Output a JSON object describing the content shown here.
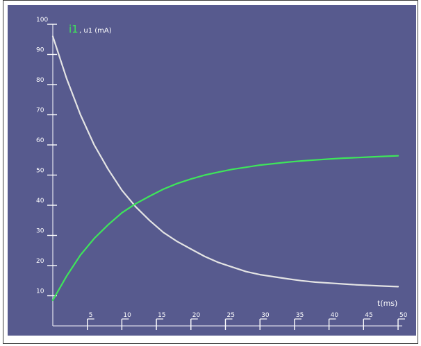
{
  "chart_data": {
    "type": "line",
    "title": "",
    "xlabel": "t(ms)",
    "ylabel": "",
    "xlim": [
      0,
      50
    ],
    "ylim": [
      0,
      100
    ],
    "x_ticks": [
      5,
      10,
      15,
      20,
      25,
      30,
      35,
      40,
      45,
      50
    ],
    "y_ticks": [
      10,
      20,
      30,
      40,
      50,
      60,
      70,
      80,
      90,
      100
    ],
    "grid": false,
    "legend": {
      "position": "top-left",
      "label_highlight": "i1",
      "label_rest": ", u1 (mA)"
    },
    "series": [
      {
        "name": "u1",
        "color": "#e4e4e4",
        "x": [
          0,
          2,
          4,
          6,
          8,
          10,
          12,
          14,
          16,
          18,
          20,
          22,
          24,
          26,
          28,
          30,
          32,
          34,
          36,
          38,
          40,
          42,
          44,
          46,
          48,
          50
        ],
        "y": [
          96,
          82,
          70,
          60,
          52,
          45,
          39.5,
          35,
          31,
          28,
          25.5,
          23,
          21,
          19.5,
          18,
          17,
          16.3,
          15.6,
          15,
          14.5,
          14.2,
          13.9,
          13.6,
          13.4,
          13.2,
          13
        ]
      },
      {
        "name": "i1",
        "color": "#3ee65a",
        "x": [
          0,
          2,
          4,
          6,
          8,
          10,
          12,
          14,
          16,
          18,
          20,
          22,
          24,
          26,
          28,
          30,
          32,
          34,
          36,
          38,
          40,
          42,
          44,
          46,
          48,
          50
        ],
        "y": [
          8.5,
          16.5,
          23.5,
          29,
          33.5,
          37.5,
          40.5,
          43,
          45.3,
          47.2,
          48.7,
          50,
          51,
          51.9,
          52.6,
          53.3,
          53.8,
          54.3,
          54.7,
          55,
          55.3,
          55.6,
          55.8,
          56,
          56.2,
          56.4
        ]
      }
    ]
  }
}
